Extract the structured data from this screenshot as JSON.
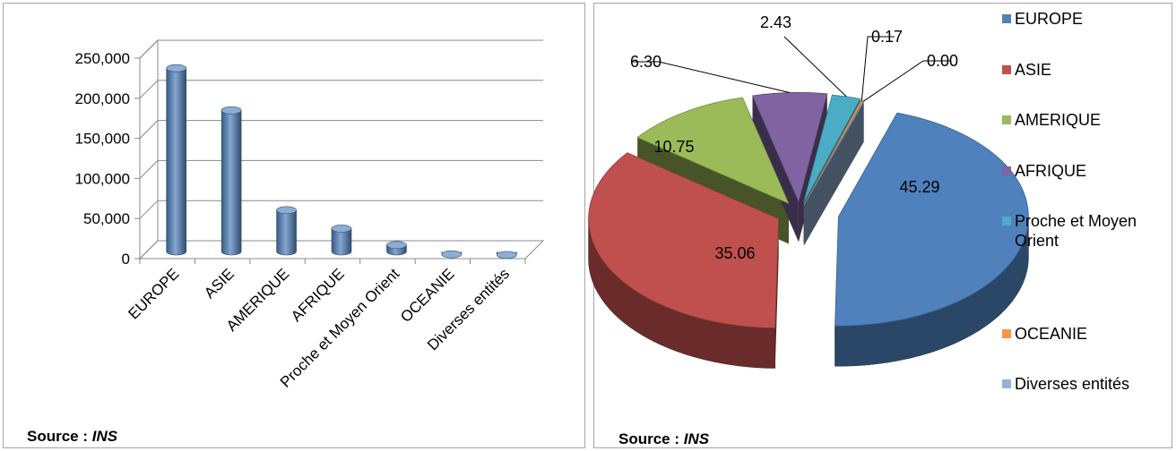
{
  "left_chart": {
    "source_label": "Source :",
    "source_value": "INS"
  },
  "right_chart": {
    "source_label": "Source :",
    "source_value": "INS"
  },
  "chart_data": [
    {
      "type": "bar",
      "categories": [
        "EUROPE",
        "ASIE",
        "AMERIQUE",
        "AFRIQUE",
        "Proche et Moyen Orient",
        "OCEANIE",
        "Diverses entités"
      ],
      "values": [
        233000,
        180500,
        56000,
        33000,
        12500,
        900,
        150
      ],
      "ylim": [
        0,
        250000
      ],
      "yticks": [
        "0",
        "50,000",
        "100,000",
        "150,000",
        "200,000",
        "250,000"
      ],
      "ytick_values": [
        0,
        50000,
        100000,
        150000,
        200000,
        250000
      ],
      "grid": true,
      "color": "#4f81bd"
    },
    {
      "type": "pie",
      "labels": [
        "EUROPE",
        "ASIE",
        "AMERIQUE",
        "AFRIQUE",
        "Proche et Moyen Orient",
        "OCEANIE",
        "Diverses entités"
      ],
      "values": [
        45.29,
        35.06,
        10.75,
        6.3,
        2.43,
        0.17,
        0.0
      ],
      "value_labels": [
        "45.29",
        "35.06",
        "10.75",
        "6.30",
        "2.43",
        "0.17",
        "0.00"
      ],
      "colors": [
        "#4f81bd",
        "#c0504d",
        "#9bbb59",
        "#8064a2",
        "#4bacc6",
        "#f79646",
        "#95b3d7"
      ],
      "legend_position": "right"
    }
  ]
}
